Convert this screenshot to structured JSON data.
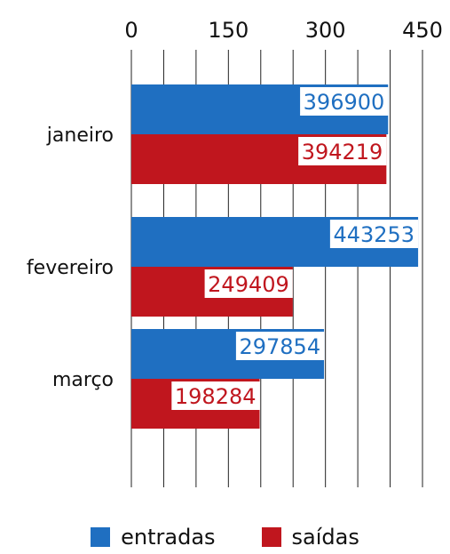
{
  "chart_data": {
    "type": "bar",
    "orientation": "horizontal",
    "categories": [
      "janeiro",
      "fevereiro",
      "março"
    ],
    "series": [
      {
        "name": "entradas",
        "values": [
          396900,
          443253,
          297854
        ],
        "color": "#1f6fc1"
      },
      {
        "name": "saídas",
        "values": [
          394219,
          249409,
          198284
        ],
        "color": "#c0161e"
      }
    ],
    "x_ticks": [
      "0",
      "150",
      "300",
      "450"
    ],
    "x_tick_values": [
      0,
      150000,
      300000,
      450000
    ],
    "xlim": [
      0,
      450000
    ],
    "grid": true,
    "legend_position": "bottom"
  }
}
